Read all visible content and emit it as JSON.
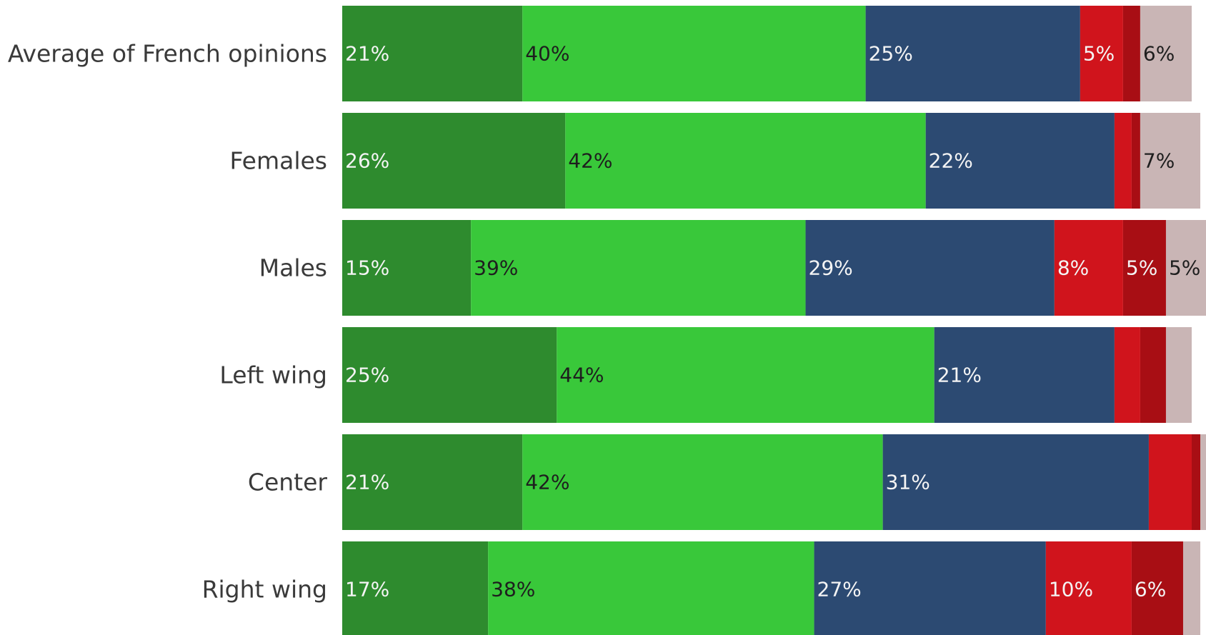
{
  "chart_data": {
    "type": "bar",
    "orientation": "horizontal",
    "stacked": true,
    "grid": false,
    "legend": "none",
    "xlim": [
      0,
      100
    ],
    "title": "",
    "xlabel": "",
    "ylabel": "",
    "categories": [
      "Average of French opinions",
      "Females",
      "Males",
      "Left wing",
      "Center",
      "Right wing"
    ],
    "series": [
      {
        "color": "#2e8b2e",
        "values": [
          21,
          26,
          15,
          25,
          21,
          17
        ],
        "labels": [
          "21%",
          "26%",
          "15%",
          "25%",
          "21%",
          "17%"
        ]
      },
      {
        "color": "#39c83a",
        "values": [
          40,
          42,
          39,
          44,
          42,
          38
        ],
        "labels": [
          "40%",
          "42%",
          "39%",
          "44%",
          "42%",
          "38%"
        ]
      },
      {
        "color": "#2c4a72",
        "values": [
          25,
          22,
          29,
          21,
          31,
          27
        ],
        "labels": [
          "25%",
          "22%",
          "29%",
          "21%",
          "31%",
          "27%"
        ]
      },
      {
        "color": "#d0141c",
        "values": [
          5,
          2,
          8,
          3,
          5,
          10
        ],
        "labels": [
          "5%",
          "",
          "8%",
          "",
          "",
          "10%"
        ]
      },
      {
        "color": "#a80e14",
        "values": [
          2,
          1,
          5,
          3,
          1,
          6
        ],
        "labels": [
          "",
          "",
          "5%",
          "",
          "",
          "6%"
        ]
      },
      {
        "color": "#c9b5b5",
        "values": [
          6,
          7,
          5,
          3,
          2,
          2
        ],
        "labels": [
          "6%",
          "7%",
          "5%",
          "",
          "",
          ""
        ]
      }
    ]
  }
}
